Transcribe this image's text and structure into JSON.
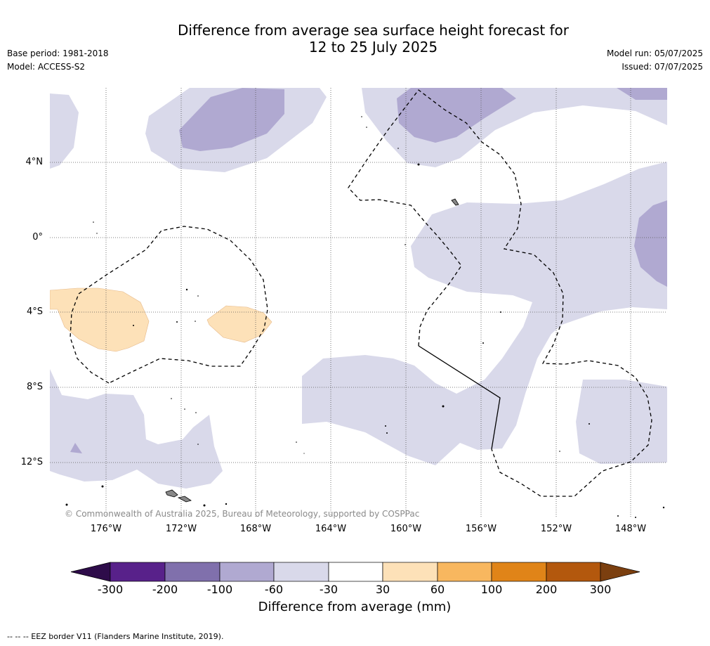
{
  "title": {
    "line1": "Difference from average sea surface height forecast for",
    "line2": "12 to 25 July 2025"
  },
  "meta": {
    "base_period": "Base period: 1981-2018",
    "model": "Model: ACCESS-S2",
    "model_run": "Model run: 05/07/2025",
    "issued": "Issued: 07/07/2025"
  },
  "map": {
    "lat_labels": [
      "4°N",
      "0°",
      "4°S",
      "8°S",
      "12°S"
    ],
    "lon_labels": [
      "176°W",
      "172°W",
      "168°W",
      "164°W",
      "160°W",
      "156°W",
      "152°W",
      "148°W"
    ],
    "copyright": "© Commonwealth of Australia 2025, Bureau of Meteorology, supported by COSPPac"
  },
  "colorbar": {
    "label": "Difference from average (mm)",
    "ticks": [
      "-300",
      "-200",
      "-100",
      "-60",
      "-30",
      "30",
      "60",
      "100",
      "200",
      "300"
    ],
    "colors": [
      "#2e0c4a",
      "#58218a",
      "#8070ac",
      "#b0a9d1",
      "#d9d9ea",
      "#ffffff",
      "#fde1b8",
      "#f8b75f",
      "#e08418",
      "#b3580d",
      "#7b3f0f"
    ]
  },
  "footnote": "--  --  -- EEZ border V11 (Flanders Marine Institute, 2019)."
}
